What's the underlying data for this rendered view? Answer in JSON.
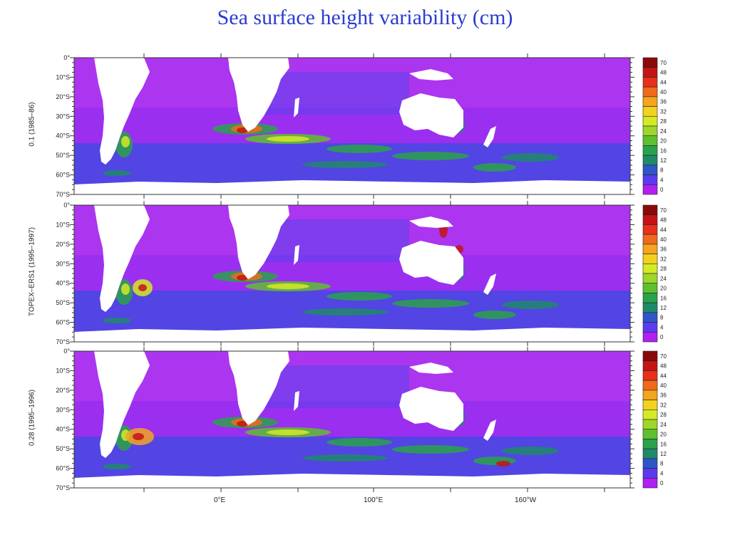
{
  "title": "Sea surface height variability (cm)",
  "lat_ticks": [
    "0°",
    "10°S",
    "20°S",
    "30°S",
    "40°S",
    "50°S",
    "60°S",
    "70°S"
  ],
  "colorbar_ticks": [
    "70",
    "48",
    "44",
    "40",
    "36",
    "32",
    "28",
    "24",
    "20",
    "16",
    "12",
    "8",
    "4",
    "0"
  ],
  "colorbar_colors": [
    "#8a0a0a",
    "#c41414",
    "#e8301a",
    "#f06a1a",
    "#f4a41e",
    "#f2d21e",
    "#d4ea24",
    "#9ed62a",
    "#5ec02e",
    "#2aa24a",
    "#1f8a6a",
    "#2e56c8",
    "#5a3cf0",
    "#b020f0"
  ],
  "x_tick_labels": [
    "0°E",
    "100°E",
    "160°W"
  ],
  "panels": [
    {
      "ylabel": "0.1 (1985–86)"
    },
    {
      "ylabel": "TOPEX–ERS1 (1995–1997)"
    },
    {
      "ylabel": "0.28 (1995–1996)"
    }
  ]
}
